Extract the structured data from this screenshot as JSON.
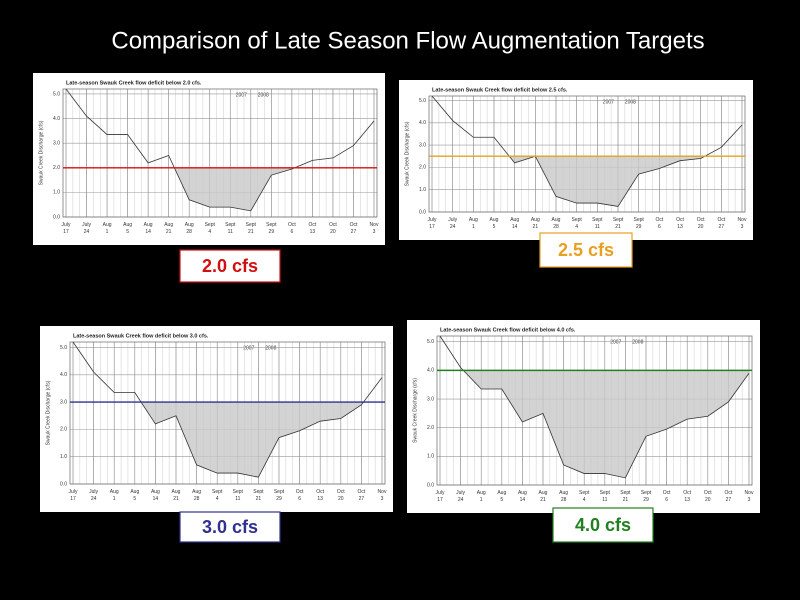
{
  "title": "Comparison of Late Season Flow Augmentation Targets",
  "chart_data": [
    {
      "type": "line",
      "title": "Late-season Swauk Creek flow deficit below 2.0 cfs.",
      "annotations": [
        "2007",
        "2008"
      ],
      "ylabel": "Swauk Creek Discharge (cfs)",
      "categories": [
        "July 17",
        "July 24",
        "Aug 1",
        "Aug 5",
        "Aug 14",
        "Aug 21",
        "Aug 28",
        "Sept 4",
        "Sept 11",
        "Sept 21",
        "Sept 29",
        "Oct 6",
        "Oct 13",
        "Oct 20",
        "Oct 27",
        "Nov 3"
      ],
      "values": [
        5.2,
        4.1,
        3.35,
        3.35,
        2.2,
        2.5,
        0.7,
        0.4,
        0.4,
        0.25,
        1.7,
        1.95,
        2.3,
        2.4,
        2.9,
        3.9
      ],
      "threshold": 2.0,
      "threshold_color": "#d01010",
      "label": "2.0 cfs",
      "ylim": [
        0,
        5.2
      ],
      "yticks": [
        {
          "value": 0,
          "label": "0.0"
        },
        {
          "value": 1,
          "label": "1.0"
        },
        {
          "value": 2,
          "label": "2.0"
        },
        {
          "value": 3,
          "label": "3.0"
        },
        {
          "value": 4,
          "label": "4.0"
        },
        {
          "value": 5,
          "label": "5.0"
        }
      ],
      "grid": true
    },
    {
      "type": "line",
      "title": "Late-season Swauk Creek flow deficit below 2.5 cfs.",
      "annotations": [
        "2007",
        "2008"
      ],
      "ylabel": "Swauk Creek Discharge (cfs)",
      "categories": [
        "July 17",
        "July 24",
        "Aug 1",
        "Aug 5",
        "Aug 14",
        "Aug 21",
        "Aug 28",
        "Sept 4",
        "Sept 11",
        "Sept 21",
        "Sept 29",
        "Oct 6",
        "Oct 13",
        "Oct 20",
        "Oct 27",
        "Nov 3"
      ],
      "values": [
        5.2,
        4.1,
        3.35,
        3.35,
        2.2,
        2.5,
        0.7,
        0.4,
        0.4,
        0.25,
        1.7,
        1.95,
        2.3,
        2.4,
        2.9,
        3.9
      ],
      "threshold": 2.5,
      "threshold_color": "#e8a020",
      "label": "2.5 cfs",
      "ylim": [
        0,
        5.2
      ],
      "yticks": [
        {
          "value": 0,
          "label": "0.0"
        },
        {
          "value": 1,
          "label": "1.0"
        },
        {
          "value": 2,
          "label": "2.0"
        },
        {
          "value": 3,
          "label": "3.0"
        },
        {
          "value": 4,
          "label": "4.0"
        },
        {
          "value": 5,
          "label": "5.0"
        }
      ],
      "grid": true
    },
    {
      "type": "line",
      "title": "Late-season Swauk Creek flow deficit below 3.0 cfs.",
      "annotations": [
        "2007",
        "2008"
      ],
      "ylabel": "Swauk Creek Discharge (cfs)",
      "categories": [
        "July 17",
        "July 24",
        "Aug 1",
        "Aug 5",
        "Aug 14",
        "Aug 21",
        "Aug 28",
        "Sept 4",
        "Sept 11",
        "Sept 21",
        "Sept 29",
        "Oct 6",
        "Oct 13",
        "Oct 20",
        "Oct 27",
        "Nov 3"
      ],
      "values": [
        5.2,
        4.1,
        3.35,
        3.35,
        2.2,
        2.5,
        0.7,
        0.4,
        0.4,
        0.25,
        1.7,
        1.95,
        2.3,
        2.4,
        2.9,
        3.9
      ],
      "threshold": 3.0,
      "threshold_color": "#303090",
      "label": "3.0 cfs",
      "ylim": [
        0,
        5.2
      ],
      "yticks": [
        {
          "value": 0,
          "label": "0.0"
        },
        {
          "value": 1,
          "label": "1.0"
        },
        {
          "value": 2,
          "label": "2.0"
        },
        {
          "value": 3,
          "label": "3.0"
        },
        {
          "value": 4,
          "label": "4.0"
        },
        {
          "value": 5,
          "label": "5.0"
        }
      ],
      "grid": true
    },
    {
      "type": "line",
      "title": "Late-season Swauk Creek flow deficit below 4.0 cfs.",
      "annotations": [
        "2007",
        "2008"
      ],
      "ylabel": "Swauk Creek Discharge (cfs)",
      "categories": [
        "July 17",
        "July 24",
        "Aug 1",
        "Aug 5",
        "Aug 14",
        "Aug 21",
        "Aug 28",
        "Sept 4",
        "Sept 11",
        "Sept 21",
        "Sept 29",
        "Oct 6",
        "Oct 13",
        "Oct 20",
        "Oct 27",
        "Nov 3"
      ],
      "values": [
        5.2,
        4.1,
        3.35,
        3.35,
        2.2,
        2.5,
        0.7,
        0.4,
        0.4,
        0.25,
        1.7,
        1.95,
        2.3,
        2.4,
        2.9,
        3.9
      ],
      "threshold": 4.0,
      "threshold_color": "#208020",
      "label": "4.0 cfs",
      "ylim": [
        0,
        5.2
      ],
      "yticks": [
        {
          "value": 0,
          "label": "0.0"
        },
        {
          "value": 1,
          "label": "1.0"
        },
        {
          "value": 2,
          "label": "2.0"
        },
        {
          "value": 3,
          "label": "3.0"
        },
        {
          "value": 4,
          "label": "4.0"
        },
        {
          "value": 5,
          "label": "5.0"
        }
      ],
      "grid": true
    }
  ]
}
